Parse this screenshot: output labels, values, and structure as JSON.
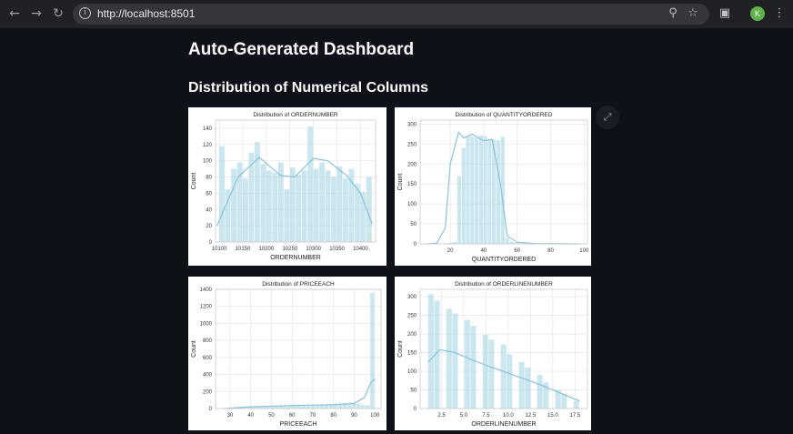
{
  "browser": {
    "url": "http://localhost:8501",
    "profile_initial": "K",
    "icons": [
      "back-icon",
      "forward-icon",
      "reload-icon",
      "info-icon",
      "zoom-icon",
      "star-icon",
      "extensions-icon",
      "menu-icon"
    ]
  },
  "page": {
    "title": "Auto-Generated Dashboard",
    "section_title": "Distribution of Numerical Columns"
  },
  "colors": {
    "bar": "#add8e6",
    "kde": "#89c4d6",
    "background": "#0e1117"
  },
  "chart_data": [
    {
      "type": "bar",
      "title": "Distribution of ORDERNUMBER",
      "xlabel": "ORDERNUMBER",
      "ylabel": "Count",
      "xlim": [
        10092,
        10432
      ],
      "ylim": [
        0,
        150
      ],
      "xticks": [
        10100,
        10150,
        10200,
        10250,
        10300,
        10350,
        10400
      ],
      "yticks": [
        0,
        20,
        40,
        60,
        80,
        100,
        120,
        140
      ],
      "bin_range": [
        10100,
        10425
      ],
      "values": [
        118,
        65,
        90,
        98,
        78,
        110,
        123,
        96,
        88,
        85,
        98,
        65,
        92,
        83,
        88,
        142,
        90,
        98,
        88,
        80,
        93,
        78,
        90,
        72,
        62,
        80
      ],
      "kde": [
        [
          10095,
          20
        ],
        [
          10140,
          80
        ],
        [
          10185,
          104
        ],
        [
          10230,
          82
        ],
        [
          10260,
          80
        ],
        [
          10300,
          103
        ],
        [
          10330,
          100
        ],
        [
          10370,
          82
        ],
        [
          10400,
          60
        ],
        [
          10425,
          22
        ]
      ],
      "grid": true
    },
    {
      "type": "bar",
      "title": "Distribution of QUANTITYORDERED",
      "xlabel": "QUANTITYORDERED",
      "ylabel": "Count",
      "xlim": [
        2,
        102
      ],
      "ylim": [
        0,
        310
      ],
      "xticks": [
        20,
        40,
        60,
        80,
        100
      ],
      "yticks": [
        0,
        50,
        100,
        150,
        200,
        250,
        300
      ],
      "bin_range": [
        6,
        97
      ],
      "values": [
        0,
        0,
        0,
        0,
        0,
        3,
        5,
        170,
        240,
        270,
        268,
        266,
        272,
        270,
        262,
        262,
        260,
        268,
        15,
        6,
        3,
        2,
        0,
        0,
        1,
        0,
        0,
        0,
        0,
        0,
        0,
        0,
        0,
        0,
        1
      ],
      "kde": [
        [
          6,
          0
        ],
        [
          12,
          2
        ],
        [
          17,
          40
        ],
        [
          20,
          200
        ],
        [
          25,
          280
        ],
        [
          28,
          265
        ],
        [
          33,
          275
        ],
        [
          40,
          258
        ],
        [
          45,
          262
        ],
        [
          50,
          150
        ],
        [
          54,
          20
        ],
        [
          60,
          4
        ],
        [
          70,
          1
        ],
        [
          97,
          0
        ]
      ],
      "grid": true
    },
    {
      "type": "bar",
      "title": "Distribution of PRICEEACH",
      "xlabel": "PRICEEACH",
      "ylabel": "Count",
      "xlim": [
        23,
        103
      ],
      "ylim": [
        0,
        1400
      ],
      "xticks": [
        30,
        40,
        50,
        60,
        70,
        80,
        90,
        100
      ],
      "yticks": [
        0,
        200,
        400,
        600,
        800,
        1000,
        1200,
        1400
      ],
      "bin_range": [
        26.9,
        100
      ],
      "values": [
        5,
        8,
        12,
        15,
        18,
        20,
        22,
        22,
        25,
        30,
        28,
        30,
        32,
        30,
        35,
        38,
        40,
        40,
        45,
        48,
        42,
        50,
        52,
        55,
        60,
        58,
        65,
        60,
        62,
        58,
        45,
        38,
        1360
      ],
      "kde": [
        [
          27,
          0
        ],
        [
          40,
          20
        ],
        [
          60,
          35
        ],
        [
          80,
          45
        ],
        [
          90,
          60
        ],
        [
          95,
          130
        ],
        [
          98,
          300
        ],
        [
          100,
          350
        ]
      ],
      "grid": true
    },
    {
      "type": "bar",
      "title": "Distribution of ORDERLINENUMBER",
      "xlabel": "ORDERLINENUMBER",
      "ylabel": "Count",
      "xlim": [
        0.1,
        18.9
      ],
      "ylim": [
        0,
        320
      ],
      "xticks": [
        2.5,
        5.0,
        7.5,
        10.0,
        12.5,
        15.0,
        17.5
      ],
      "xtick_labels": [
        "2.5",
        "5.0",
        "7.5",
        "10.0",
        "12.5",
        "15.0",
        "17.5"
      ],
      "yticks": [
        0,
        50,
        100,
        150,
        200,
        250,
        300
      ],
      "bin_range": [
        1,
        18
      ],
      "values": [
        307,
        290,
        0,
        268,
        255,
        0,
        238,
        222,
        0,
        198,
        185,
        0,
        172,
        146,
        0,
        125,
        110,
        0,
        90,
        70,
        0,
        50,
        40,
        0,
        20
      ],
      "kde": [
        [
          1,
          125
        ],
        [
          2.3,
          158
        ],
        [
          4,
          150
        ],
        [
          6,
          130
        ],
        [
          8,
          112
        ],
        [
          10,
          95
        ],
        [
          12,
          78
        ],
        [
          14,
          60
        ],
        [
          16,
          40
        ],
        [
          18,
          20
        ]
      ],
      "grid": true
    }
  ]
}
